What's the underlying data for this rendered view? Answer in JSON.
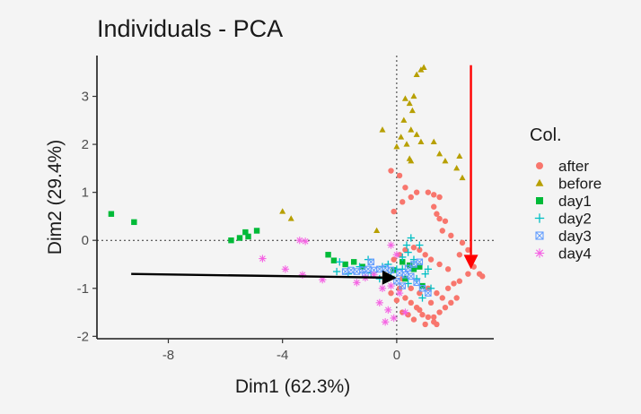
{
  "chart_data": {
    "type": "scatter",
    "title": "Individuals - PCA",
    "xlabel": "Dim1 (62.3%)",
    "ylabel": "Dim2 (29.4%)",
    "xlim": [
      -10.5,
      3.4
    ],
    "ylim": [
      -2.05,
      3.85
    ],
    "xticks": [
      -8,
      -4,
      0
    ],
    "yticks": [
      -2,
      -1,
      0,
      1,
      2,
      3
    ],
    "grid": false,
    "reference_lines": {
      "x": 0,
      "y": 0,
      "style": "dotted"
    },
    "legend": {
      "title": "Col.",
      "placement": "right"
    },
    "series": [
      {
        "name": "after",
        "color": "#F8766D",
        "marker": "circle",
        "points": [
          [
            -0.2,
            1.45
          ],
          [
            -0.1,
            0.6
          ],
          [
            0.1,
            1.35
          ],
          [
            0.3,
            1.1
          ],
          [
            0.2,
            0.8
          ],
          [
            0.5,
            0.9
          ],
          [
            0.7,
            1.0
          ],
          [
            1.1,
            1.0
          ],
          [
            1.3,
            0.95
          ],
          [
            1.5,
            0.9
          ],
          [
            1.3,
            0.7
          ],
          [
            1.4,
            0.55
          ],
          [
            1.5,
            0.45
          ],
          [
            1.7,
            0.4
          ],
          [
            1.6,
            0.2
          ],
          [
            1.9,
            0.1
          ],
          [
            2.3,
            -0.05
          ],
          [
            2.5,
            -0.2
          ],
          [
            2.2,
            -0.3
          ],
          [
            2.7,
            -0.55
          ],
          [
            2.9,
            -0.7
          ],
          [
            3.0,
            -0.75
          ],
          [
            2.5,
            -0.7
          ],
          [
            2.0,
            -0.9
          ],
          [
            1.8,
            -0.6
          ],
          [
            1.5,
            -0.5
          ],
          [
            1.2,
            -0.4
          ],
          [
            1.0,
            -0.3
          ],
          [
            0.8,
            -0.2
          ],
          [
            0.6,
            -0.15
          ],
          [
            0.3,
            -0.2
          ],
          [
            0.1,
            -0.3
          ],
          [
            -0.1,
            -0.4
          ],
          [
            0.2,
            -0.8
          ],
          [
            0.1,
            -1.0
          ],
          [
            0.3,
            -1.2
          ],
          [
            0.5,
            -1.3
          ],
          [
            0.7,
            -1.4
          ],
          [
            0.9,
            -1.55
          ],
          [
            1.1,
            -1.6
          ],
          [
            1.3,
            -1.6
          ],
          [
            1.5,
            -1.5
          ],
          [
            1.7,
            -1.4
          ],
          [
            1.9,
            -1.3
          ],
          [
            2.1,
            -1.2
          ],
          [
            1.6,
            -1.2
          ],
          [
            1.4,
            -1.1
          ],
          [
            1.1,
            -1.0
          ],
          [
            0.8,
            -1.1
          ],
          [
            0.5,
            -1.0
          ],
          [
            0.4,
            -1.55
          ],
          [
            0.6,
            -1.65
          ],
          [
            1.0,
            -1.75
          ],
          [
            1.4,
            -1.75
          ],
          [
            0.2,
            -1.5
          ],
          [
            0.0,
            -1.25
          ],
          [
            -0.2,
            -1.1
          ],
          [
            1.2,
            -1.3
          ],
          [
            1.8,
            -1.0
          ],
          [
            2.2,
            -0.85
          ],
          [
            1.3,
            -1.7
          ],
          [
            0.8,
            -1.45
          ]
        ]
      },
      {
        "name": "before",
        "color": "#B79F00",
        "marker": "triangle",
        "points": [
          [
            0.95,
            3.6
          ],
          [
            0.85,
            3.55
          ],
          [
            0.7,
            3.45
          ],
          [
            0.6,
            3.0
          ],
          [
            0.3,
            2.95
          ],
          [
            0.45,
            2.85
          ],
          [
            0.55,
            2.7
          ],
          [
            0.25,
            2.5
          ],
          [
            0.5,
            2.3
          ],
          [
            0.7,
            2.2
          ],
          [
            0.15,
            2.15
          ],
          [
            0.85,
            2.05
          ],
          [
            0.35,
            2.0
          ],
          [
            1.3,
            2.05
          ],
          [
            0.0,
            1.95
          ],
          [
            1.5,
            1.8
          ],
          [
            0.45,
            1.7
          ],
          [
            1.7,
            1.65
          ],
          [
            2.2,
            1.75
          ],
          [
            2.1,
            1.5
          ],
          [
            2.3,
            1.3
          ],
          [
            0.5,
            1.65
          ],
          [
            -0.5,
            2.3
          ],
          [
            -4.0,
            0.6
          ],
          [
            -3.7,
            0.45
          ],
          [
            -0.7,
            0.2
          ]
        ]
      },
      {
        "name": "day1",
        "color": "#00BA38",
        "marker": "square",
        "points": [
          [
            -10.0,
            0.55
          ],
          [
            -9.2,
            0.38
          ],
          [
            -5.8,
            0.0
          ],
          [
            -5.5,
            0.05
          ],
          [
            -5.2,
            0.08
          ],
          [
            -4.9,
            0.2
          ],
          [
            -5.3,
            0.17
          ],
          [
            -2.4,
            -0.3
          ],
          [
            -2.2,
            -0.42
          ],
          [
            0.45,
            -0.52
          ],
          [
            0.6,
            -0.6
          ],
          [
            0.8,
            -0.55
          ],
          [
            -0.1,
            -0.62
          ],
          [
            0.3,
            -0.8
          ],
          [
            -1.2,
            -0.55
          ],
          [
            -1.5,
            -0.45
          ],
          [
            -1.8,
            -0.5
          ],
          [
            0.9,
            -0.95
          ],
          [
            0.2,
            -0.45
          ]
        ]
      },
      {
        "name": "day2",
        "color": "#00BFC4",
        "marker": "plus",
        "points": [
          [
            0.5,
            0.05
          ],
          [
            0.35,
            -0.1
          ],
          [
            -2.0,
            -0.45
          ],
          [
            -2.1,
            -0.65
          ],
          [
            -1.3,
            -0.55
          ],
          [
            -1.7,
            -0.7
          ],
          [
            -0.9,
            -0.68
          ],
          [
            -0.6,
            -0.8
          ],
          [
            -0.2,
            -0.75
          ],
          [
            0.0,
            -0.6
          ],
          [
            0.2,
            -0.6
          ],
          [
            0.4,
            -0.9
          ],
          [
            0.7,
            -0.8
          ],
          [
            1.0,
            -0.7
          ],
          [
            0.6,
            -0.4
          ],
          [
            0.4,
            -0.25
          ],
          [
            0.8,
            -0.1
          ],
          [
            1.2,
            -1.0
          ],
          [
            0.9,
            -1.2
          ],
          [
            1.1,
            -0.6
          ],
          [
            0.2,
            -0.35
          ],
          [
            -0.5,
            -0.55
          ],
          [
            -1.0,
            -0.4
          ],
          [
            -0.3,
            -0.5
          ]
        ]
      },
      {
        "name": "day3",
        "color": "#619CFF",
        "marker": "square-x",
        "points": [
          [
            -1.8,
            -0.65
          ],
          [
            -1.6,
            -0.62
          ],
          [
            -1.4,
            -0.65
          ],
          [
            -1.2,
            -0.62
          ],
          [
            -1.0,
            -0.6
          ],
          [
            -0.8,
            -0.62
          ],
          [
            -0.6,
            -0.6
          ],
          [
            -0.4,
            -0.58
          ],
          [
            -0.2,
            -0.62
          ],
          [
            0.1,
            -0.68
          ],
          [
            0.3,
            -0.72
          ],
          [
            0.5,
            -0.75
          ],
          [
            0.7,
            -0.88
          ],
          [
            0.9,
            -1.0
          ],
          [
            1.1,
            -1.1
          ],
          [
            0.0,
            -0.85
          ],
          [
            0.2,
            -0.95
          ],
          [
            0.4,
            -0.58
          ],
          [
            0.6,
            -0.5
          ],
          [
            0.8,
            -0.45
          ],
          [
            -0.9,
            -0.45
          ],
          [
            -1.1,
            -0.72
          ]
        ]
      },
      {
        "name": "day4",
        "color": "#F564E3",
        "marker": "asterisk",
        "points": [
          [
            -3.4,
            0.0
          ],
          [
            -3.2,
            -0.02
          ],
          [
            -4.7,
            -0.38
          ],
          [
            -3.9,
            -0.6
          ],
          [
            -3.3,
            -0.72
          ],
          [
            -2.6,
            -0.82
          ],
          [
            -1.4,
            -0.88
          ],
          [
            -1.1,
            -0.78
          ],
          [
            -0.8,
            -0.72
          ],
          [
            -0.5,
            -1.0
          ],
          [
            -0.6,
            -1.3
          ],
          [
            -0.3,
            -1.45
          ],
          [
            -0.1,
            -1.62
          ],
          [
            -0.4,
            -1.7
          ],
          [
            0.1,
            -1.1
          ],
          [
            0.3,
            -1.5
          ],
          [
            -0.2,
            -0.95
          ],
          [
            0.0,
            -0.3
          ],
          [
            -0.2,
            -0.1
          ]
        ]
      }
    ],
    "annotations": [
      {
        "type": "arrow",
        "color": "#000000",
        "from": [
          -9.3,
          -0.7
        ],
        "to": [
          0.0,
          -0.78
        ]
      },
      {
        "type": "arrow",
        "color": "#FF0000",
        "from": [
          2.6,
          3.65
        ],
        "to": [
          2.6,
          -0.6
        ]
      }
    ]
  }
}
